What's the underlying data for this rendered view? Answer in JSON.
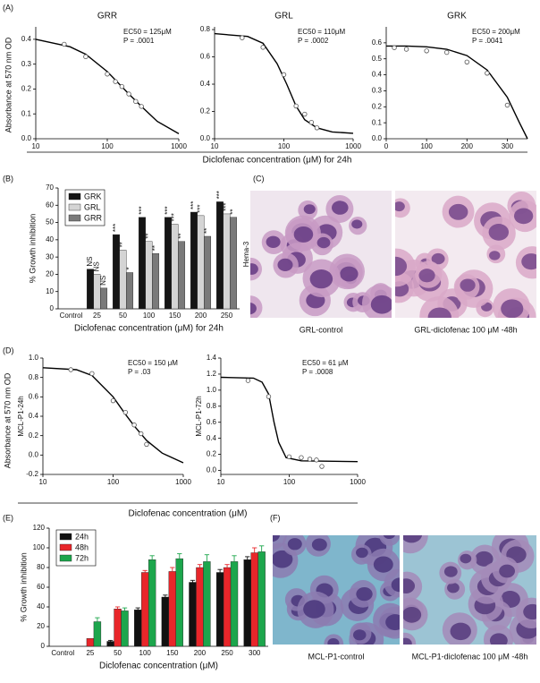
{
  "panel_labels": [
    "(A)",
    "(B)",
    "(C)",
    "(D)",
    "(E)",
    "(F)"
  ],
  "shared_labels": {
    "A": {
      "x": "Diclofenac concentration (μM) for 24h",
      "y": "Absorbance at 570 nm OD"
    },
    "D": {
      "x": "Diclofenac concentration (μM)",
      "y": "Absorbance at 570 nm OD"
    }
  },
  "images": {
    "stain": "Hema-3",
    "C": [
      "GRL-control",
      "GRL-diclofenac 100 μM -48h"
    ],
    "F": [
      "MCL-P1-control",
      "MCL-P1-diclofenac 100 μM -48h"
    ]
  },
  "chart_data": [
    {
      "type": "scatter",
      "title": "GRR",
      "xscale": "log",
      "xlim": [
        10,
        1000
      ],
      "xticks": [
        10,
        100,
        1000
      ],
      "ylim": [
        0,
        0.45
      ],
      "yticks": [
        {
          "value": 0,
          "label": "0.0"
        },
        0.1,
        0.2,
        0.3,
        0.4
      ],
      "annotations": [
        "EC50 = 125μM",
        "P = .0001"
      ],
      "points": {
        "x": [
          25,
          50,
          100,
          130,
          160,
          200,
          250,
          300
        ],
        "y": [
          0.38,
          0.33,
          0.26,
          0.23,
          0.21,
          0.18,
          0.15,
          0.13
        ]
      },
      "fit": {
        "x": [
          10,
          30,
          50,
          100,
          200,
          300,
          500,
          1000
        ],
        "y": [
          0.4,
          0.37,
          0.34,
          0.27,
          0.18,
          0.13,
          0.07,
          0.02
        ]
      }
    },
    {
      "type": "scatter",
      "title": "GRL",
      "xscale": "log",
      "xlim": [
        10,
        1000
      ],
      "xticks": [
        10,
        100,
        1000
      ],
      "ylim": [
        0,
        0.82
      ],
      "yticks": [
        {
          "value": 0,
          "label": "0.0"
        },
        0.2,
        0.4,
        0.6,
        0.8
      ],
      "annotations": [
        "EC50 = 110μM",
        "P = .0002"
      ],
      "points": {
        "x": [
          25,
          50,
          100,
          150,
          200,
          250,
          300
        ],
        "y": [
          0.74,
          0.67,
          0.47,
          0.24,
          0.18,
          0.12,
          0.08
        ]
      },
      "fit": {
        "x": [
          10,
          30,
          50,
          80,
          110,
          150,
          200,
          300,
          500,
          1000
        ],
        "y": [
          0.77,
          0.75,
          0.7,
          0.55,
          0.4,
          0.24,
          0.14,
          0.08,
          0.05,
          0.04
        ]
      }
    },
    {
      "type": "scatter",
      "title": "GRK",
      "xscale": "linear",
      "xlim": [
        0,
        350
      ],
      "xticks": [
        0,
        100,
        200,
        300
      ],
      "ylim": [
        0,
        0.7
      ],
      "yticks": [
        {
          "value": 0,
          "label": "0.0"
        },
        0.1,
        0.2,
        0.3,
        0.4,
        0.5,
        0.6
      ],
      "annotations": [
        "EC50 = 200μM",
        "P = .0041"
      ],
      "points": {
        "x": [
          20,
          50,
          100,
          150,
          200,
          250,
          300
        ],
        "y": [
          0.57,
          0.56,
          0.55,
          0.54,
          0.48,
          0.41,
          0.21
        ]
      },
      "fit": {
        "x": [
          0,
          50,
          100,
          150,
          200,
          250,
          300,
          330,
          350
        ],
        "y": [
          0.58,
          0.58,
          0.575,
          0.56,
          0.52,
          0.43,
          0.26,
          0.1,
          0
        ]
      }
    },
    {
      "type": "bar",
      "ylabel": "% Growth  inhibition",
      "xlabel": "Diclofenac concentration (μM) for 24h",
      "categories": [
        "Control",
        "25",
        "50",
        "100",
        "150",
        "200",
        "250"
      ],
      "ylim": [
        0,
        70
      ],
      "yticks": [
        0,
        10,
        20,
        30,
        40,
        50,
        60,
        70
      ],
      "legend": "upper left",
      "series": [
        {
          "name": "GRK",
          "color": "#151515",
          "values": [
            null,
            23,
            43,
            53,
            53,
            56,
            62
          ],
          "sig": [
            null,
            "NS",
            "***",
            "***",
            "***",
            "***",
            "***"
          ]
        },
        {
          "name": "GRL",
          "color": "#d4d4d4",
          "values": [
            null,
            20,
            34,
            39,
            49,
            54,
            55
          ],
          "sig": [
            null,
            "NS",
            "**",
            "**",
            "***",
            "***",
            "***"
          ]
        },
        {
          "name": "GRR",
          "color": "#7a7a7a",
          "values": [
            null,
            12,
            21,
            32,
            39,
            42,
            53
          ],
          "sig": [
            null,
            "NS",
            "*",
            "**",
            "**",
            "**",
            "**"
          ]
        }
      ]
    },
    {
      "type": "scatter",
      "ylabel": "MCL-P1-24h",
      "xscale": "log",
      "xlim": [
        10,
        1000
      ],
      "xticks": [
        10,
        100,
        1000
      ],
      "ylim": [
        -0.2,
        1.0
      ],
      "yticks": [
        -0.2,
        {
          "value": 0,
          "label": "0.0"
        },
        0.2,
        0.4,
        0.6,
        0.8,
        {
          "value": 1,
          "label": "1.0"
        }
      ],
      "annotations": [
        "EC50 = 150 μM",
        "P = .03"
      ],
      "points": {
        "x": [
          25,
          50,
          100,
          150,
          200,
          250,
          300
        ],
        "y": [
          0.88,
          0.84,
          0.56,
          0.44,
          0.31,
          0.22,
          0.11
        ]
      },
      "fit": {
        "x": [
          10,
          30,
          50,
          100,
          150,
          200,
          300,
          500,
          1000
        ],
        "y": [
          0.9,
          0.88,
          0.82,
          0.6,
          0.42,
          0.3,
          0.15,
          0.02,
          -0.08
        ]
      }
    },
    {
      "type": "scatter",
      "ylabel": "MCL-P1-72h",
      "xscale": "log",
      "xlim": [
        10,
        1000
      ],
      "xticks": [
        10,
        100,
        1000
      ],
      "ylim": [
        -0.05,
        1.4
      ],
      "yticks": [
        {
          "value": 0,
          "label": "0.0"
        },
        0.2,
        0.4,
        0.6,
        0.8,
        {
          "value": 1,
          "label": "1.0"
        },
        1.2,
        1.4
      ],
      "annotations": [
        "EC50 = 61 μM",
        "P = .0008"
      ],
      "points": {
        "x": [
          25,
          50,
          100,
          150,
          200,
          250,
          300
        ],
        "y": [
          1.12,
          0.92,
          0.17,
          0.16,
          0.14,
          0.13,
          0.05
        ]
      },
      "fit": {
        "x": [
          10,
          30,
          40,
          50,
          60,
          70,
          90,
          150,
          1000
        ],
        "y": [
          1.16,
          1.15,
          1.1,
          0.95,
          0.6,
          0.35,
          0.16,
          0.12,
          0.11
        ]
      }
    },
    {
      "type": "bar",
      "ylabel": "% Growth inhibition",
      "xlabel": "Diclofenac concentration (μM)",
      "categories": [
        "Control",
        "25",
        "50",
        "100",
        "150",
        "200",
        "250",
        "300"
      ],
      "ylim": [
        0,
        120
      ],
      "yticks": [
        0,
        20,
        40,
        60,
        80,
        100,
        120
      ],
      "legend": "upper left",
      "series": [
        {
          "name": "24h",
          "color": "#111111",
          "values": [
            null,
            null,
            5,
            37,
            50,
            65,
            75,
            88
          ],
          "errors": [
            null,
            null,
            1,
            2,
            2,
            2,
            3,
            3
          ]
        },
        {
          "name": "48h",
          "color": "#e8262a",
          "values": [
            null,
            8,
            38,
            75,
            76,
            80,
            80,
            95
          ],
          "errors": [
            null,
            null,
            2,
            2,
            4,
            3,
            3,
            5
          ]
        },
        {
          "name": "72h",
          "color": "#1ca64c",
          "values": [
            null,
            25,
            36,
            88,
            89,
            86,
            86,
            96
          ],
          "errors": [
            null,
            4,
            3,
            4,
            5,
            7,
            6,
            6
          ]
        }
      ]
    }
  ]
}
